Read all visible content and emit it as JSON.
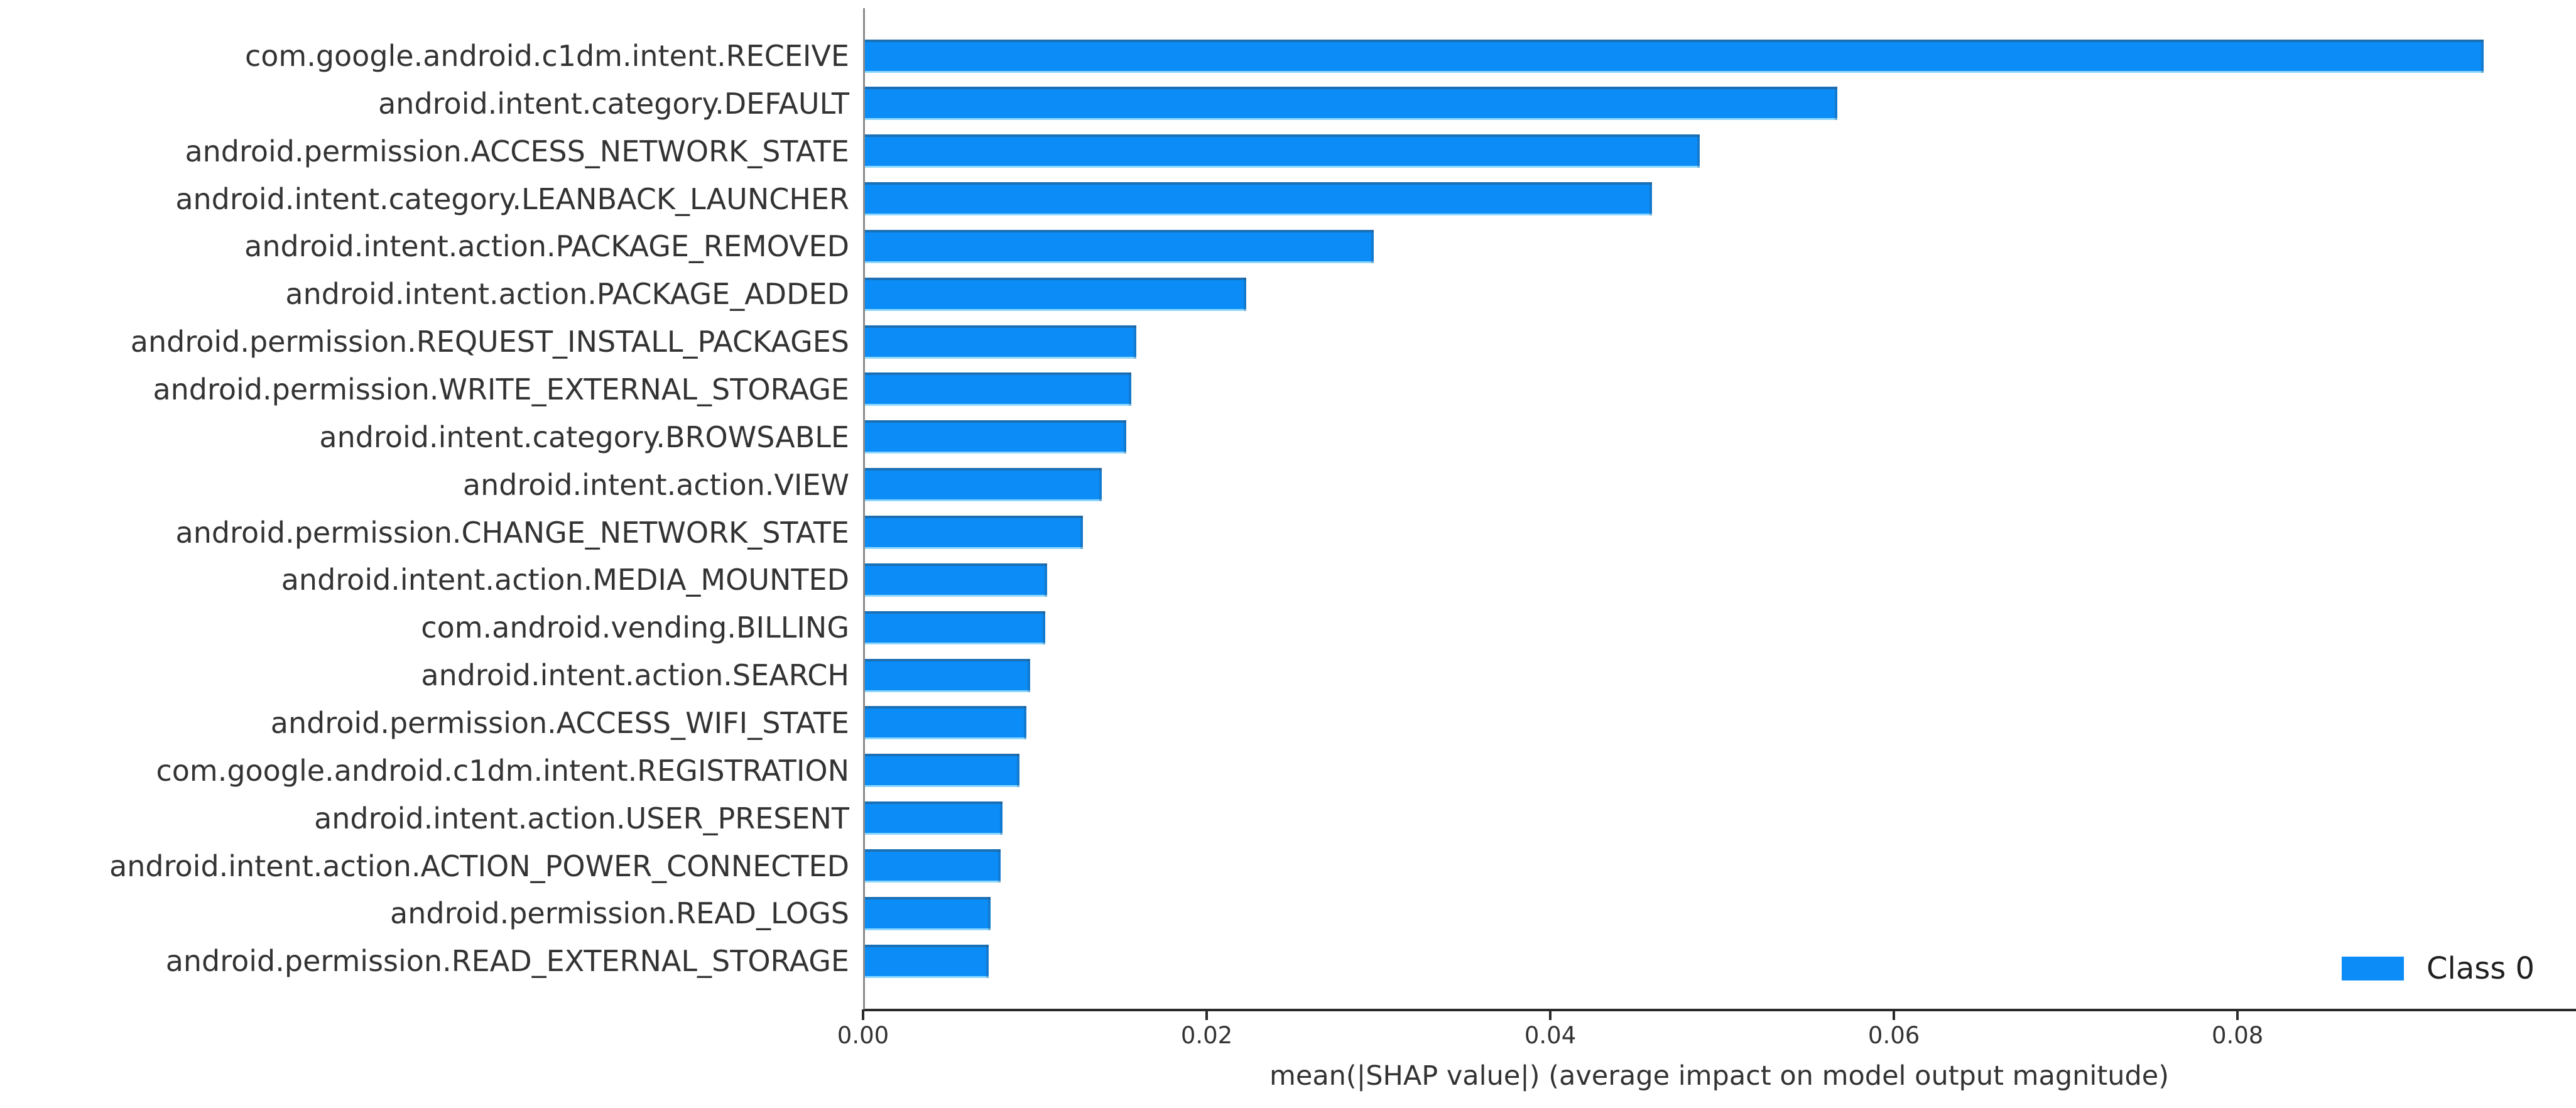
{
  "chart_data": {
    "type": "bar",
    "orientation": "horizontal",
    "title": "",
    "xlabel": "mean(|SHAP value|) (average impact on model output magnitude)",
    "ylabel": "",
    "xlim": [
      0,
      0.0997
    ],
    "xticks": [
      0.0,
      0.02,
      0.04,
      0.06,
      0.08
    ],
    "xtick_labels": [
      "0.00",
      "0.02",
      "0.04",
      "0.06",
      "0.08"
    ],
    "grid": false,
    "bar_color": "#0b8cf6",
    "legend": {
      "position": "lower right",
      "entries": [
        {
          "label": "Class 0",
          "color": "#0b8cf6"
        }
      ]
    },
    "categories": [
      "com.google.android.c1dm.intent.RECEIVE",
      "android.intent.category.DEFAULT",
      "android.permission.ACCESS_NETWORK_STATE",
      "android.intent.category.LEANBACK_LAUNCHER",
      "android.intent.action.PACKAGE_REMOVED",
      "android.intent.action.PACKAGE_ADDED",
      "android.permission.REQUEST_INSTALL_PACKAGES",
      "android.permission.WRITE_EXTERNAL_STORAGE",
      "android.intent.category.BROWSABLE",
      "android.intent.action.VIEW",
      "android.permission.CHANGE_NETWORK_STATE",
      "android.intent.action.MEDIA_MOUNTED",
      "com.android.vending.BILLING",
      "android.intent.action.SEARCH",
      "android.permission.ACCESS_WIFI_STATE",
      "com.google.android.c1dm.intent.REGISTRATION",
      "android.intent.action.USER_PRESENT",
      "android.intent.action.ACTION_POWER_CONNECTED",
      "android.permission.READ_LOGS",
      "android.permission.READ_EXTERNAL_STORAGE"
    ],
    "values": [
      0.0942,
      0.0566,
      0.0486,
      0.0458,
      0.0296,
      0.0222,
      0.0158,
      0.0155,
      0.0152,
      0.0138,
      0.0127,
      0.0106,
      0.0105,
      0.0096,
      0.0094,
      0.009,
      0.008,
      0.0079,
      0.0073,
      0.0072
    ]
  }
}
